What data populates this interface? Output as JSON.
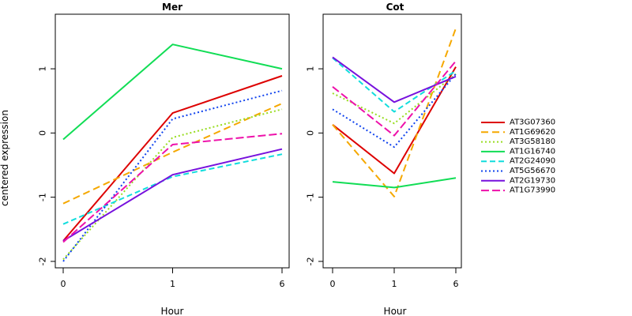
{
  "chart_data": [
    {
      "type": "line",
      "title": "Mer",
      "xlabel": "Hour",
      "ylabel": "centered expression",
      "categories": [
        "0",
        "1",
        "6"
      ],
      "ylim": [
        -2.1,
        1.85
      ],
      "yticks": [
        -2,
        -1,
        0,
        1
      ],
      "grid": false,
      "series": [
        {
          "name": "AT3G07360",
          "color": "#dd0000",
          "dash": "solid",
          "values": [
            -1.68,
            0.31,
            0.89
          ]
        },
        {
          "name": "AT1G69620",
          "color": "#f5a800",
          "dash": "long",
          "values": [
            -1.1,
            -0.3,
            0.46
          ]
        },
        {
          "name": "AT3G58180",
          "color": "#99dd22",
          "dash": "dot",
          "values": [
            -1.97,
            -0.07,
            0.37
          ]
        },
        {
          "name": "AT1G16740",
          "color": "#11dd55",
          "dash": "solid",
          "values": [
            -0.1,
            1.38,
            1.0
          ]
        },
        {
          "name": "AT2G24090",
          "color": "#11dddd",
          "dash": "dash",
          "values": [
            -1.42,
            -0.68,
            -0.33
          ]
        },
        {
          "name": "AT5G56670",
          "color": "#1144ee",
          "dash": "dot",
          "values": [
            -2.0,
            0.22,
            0.66
          ]
        },
        {
          "name": "AT2G19730",
          "color": "#7711dd",
          "dash": "solid",
          "values": [
            -1.68,
            -0.65,
            -0.25
          ]
        },
        {
          "name": "AT1G73990",
          "color": "#ee11aa",
          "dash": "dashlong",
          "values": [
            -1.7,
            -0.18,
            -0.01
          ]
        }
      ]
    },
    {
      "type": "line",
      "title": "Cot",
      "xlabel": "Hour",
      "ylabel": "",
      "categories": [
        "0",
        "1",
        "6"
      ],
      "ylim": [
        -2.1,
        1.85
      ],
      "yticks": [
        -2,
        -1,
        0,
        1
      ],
      "grid": false,
      "series": [
        {
          "name": "AT3G07360",
          "color": "#dd0000",
          "dash": "solid",
          "values": [
            0.13,
            -0.63,
            1.03
          ]
        },
        {
          "name": "AT1G69620",
          "color": "#f5a800",
          "dash": "long",
          "values": [
            0.13,
            -0.99,
            1.63
          ]
        },
        {
          "name": "AT3G58180",
          "color": "#99dd22",
          "dash": "dot",
          "values": [
            0.62,
            0.15,
            0.92
          ]
        },
        {
          "name": "AT1G16740",
          "color": "#11dd55",
          "dash": "solid",
          "values": [
            -0.76,
            -0.85,
            -0.7
          ]
        },
        {
          "name": "AT2G24090",
          "color": "#11dddd",
          "dash": "dash",
          "values": [
            1.17,
            0.33,
            0.97
          ]
        },
        {
          "name": "AT5G56670",
          "color": "#1144ee",
          "dash": "dot",
          "values": [
            0.37,
            -0.22,
            0.92
          ]
        },
        {
          "name": "AT2G19730",
          "color": "#7711dd",
          "dash": "solid",
          "values": [
            1.18,
            0.48,
            0.88
          ]
        },
        {
          "name": "AT1G73990",
          "color": "#ee11aa",
          "dash": "dashlong",
          "values": [
            0.72,
            -0.04,
            1.12
          ]
        }
      ]
    }
  ],
  "legend": {
    "placement": "right",
    "items": [
      "AT3G07360",
      "AT1G69620",
      "AT3G58180",
      "AT1G16740",
      "AT2G24090",
      "AT5G56670",
      "AT2G19730",
      "AT1G73990"
    ]
  }
}
